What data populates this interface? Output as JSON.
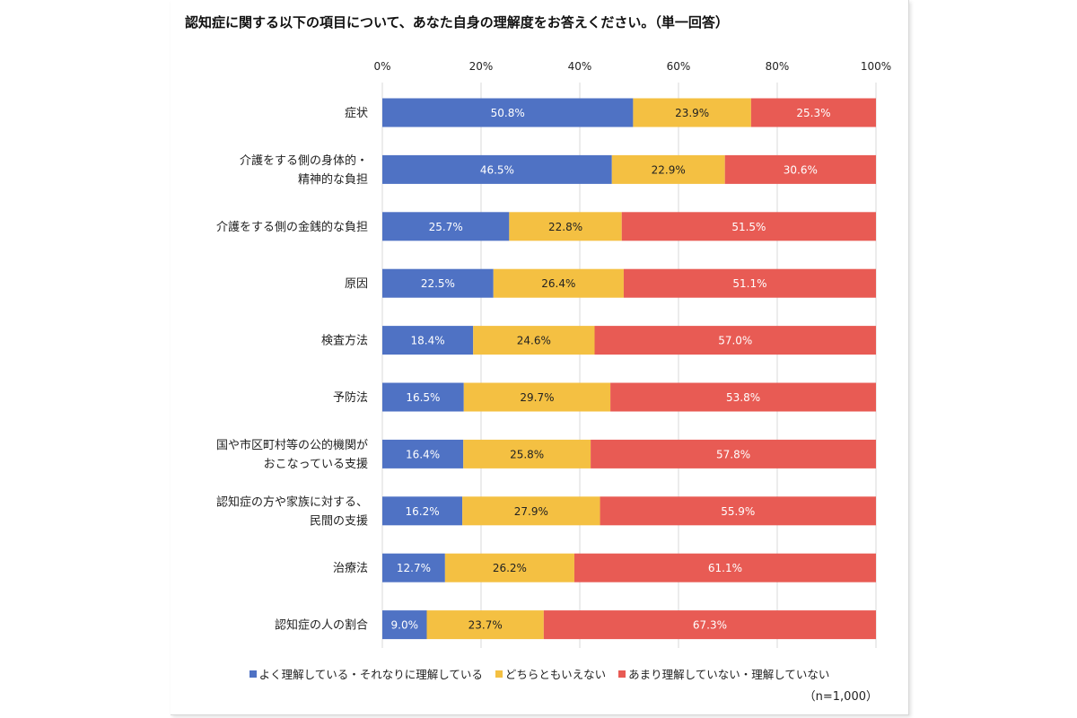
{
  "chart_data": {
    "type": "bar",
    "orientation": "horizontal",
    "stacked": true,
    "title": "認知症に関する以下の項目について、あなた自身の理解度をお答えください。（単一回答）",
    "categories": [
      [
        "症状"
      ],
      [
        "介護をする側の身体的・",
        "精神的な負担"
      ],
      [
        "介護をする側の金銭的な負担"
      ],
      [
        "原因"
      ],
      [
        "検査方法"
      ],
      [
        "予防法"
      ],
      [
        "国や市区町村等の公的機関が",
        "おこなっている支援"
      ],
      [
        "認知症の方や家族に対する、",
        "民間の支援"
      ],
      [
        "治療法"
      ],
      [
        "認知症の人の割合"
      ]
    ],
    "series": [
      {
        "name": "よく理解している・それなりに理解している",
        "color": "#4f72c4",
        "label_color": "#ffffff",
        "values": [
          50.8,
          46.5,
          25.7,
          22.5,
          18.4,
          16.5,
          16.4,
          16.2,
          12.7,
          9.0
        ],
        "labels": [
          "50.8%",
          "46.5%",
          "25.7%",
          "22.5%",
          "18.4%",
          "16.5%",
          "16.4%",
          "16.2%",
          "12.7%",
          "9.0%"
        ]
      },
      {
        "name": "どちらともいえない",
        "color": "#f4c042",
        "label_color": "#222222",
        "values": [
          23.9,
          22.9,
          22.8,
          26.4,
          24.6,
          29.7,
          25.8,
          27.9,
          26.2,
          23.7
        ],
        "labels": [
          "23.9%",
          "22.9%",
          "22.8%",
          "26.4%",
          "24.6%",
          "29.7%",
          "25.8%",
          "27.9%",
          "26.2%",
          "23.7%"
        ]
      },
      {
        "name": "あまり理解していない・理解していない",
        "color": "#e85b54",
        "label_color": "#ffffff",
        "values": [
          25.3,
          30.6,
          51.5,
          51.1,
          57.0,
          53.8,
          57.8,
          55.9,
          61.1,
          67.3
        ],
        "labels": [
          "25.3%",
          "30.6%",
          "51.5%",
          "51.1%",
          "57.0%",
          "53.8%",
          "57.8%",
          "55.9%",
          "61.1%",
          "67.3%"
        ]
      }
    ],
    "xlim": [
      0,
      100
    ],
    "xticks": [
      0,
      20,
      40,
      60,
      80,
      100
    ],
    "xtick_labels": [
      "0%",
      "20%",
      "40%",
      "60%",
      "80%",
      "100%"
    ],
    "x_axis_position": "top",
    "grid": true,
    "legend_position": "bottom"
  },
  "note": "（n=1,000）"
}
